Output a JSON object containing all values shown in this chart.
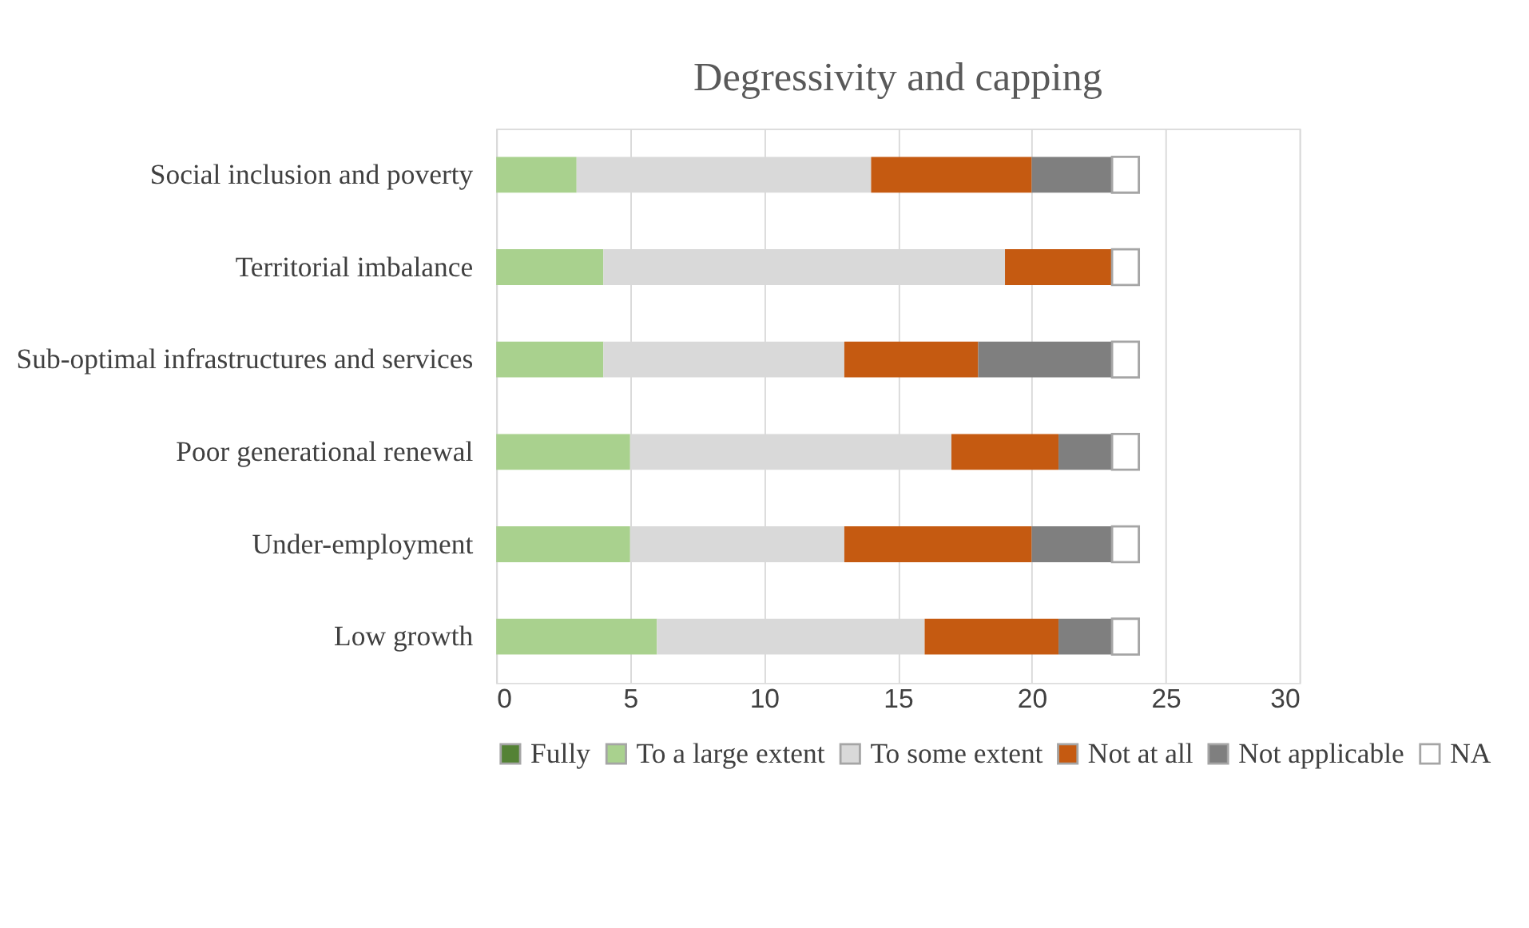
{
  "chart_data": {
    "type": "bar",
    "orientation": "horizontal",
    "stacked": true,
    "title": "Degressivity and capping",
    "categories": [
      "Social inclusion and poverty",
      "Territorial imbalance",
      "Sub-optimal infrastructures and services",
      "Poor generational renewal",
      "Under-employment",
      "Low growth"
    ],
    "series": [
      {
        "name": "Fully",
        "color": "#548235",
        "values": [
          0,
          0,
          0,
          0,
          0,
          0
        ]
      },
      {
        "name": "To a large extent",
        "color": "#a9d18e",
        "values": [
          3,
          4,
          4,
          5,
          5,
          6
        ]
      },
      {
        "name": "To some extent",
        "color": "#d9d9d9",
        "values": [
          11,
          15,
          9,
          12,
          8,
          10
        ]
      },
      {
        "name": "Not at all",
        "color": "#c55a11",
        "values": [
          6,
          4,
          5,
          4,
          7,
          5
        ]
      },
      {
        "name": "Not applicable",
        "color": "#7f7f7f",
        "values": [
          3,
          0,
          5,
          2,
          3,
          2
        ]
      },
      {
        "name": "NA",
        "color": "#ffffff",
        "values": [
          1,
          1,
          1,
          1,
          1,
          1
        ]
      }
    ],
    "xlim": [
      0,
      30
    ],
    "xticks": [
      0,
      5,
      10,
      15,
      20,
      25,
      30
    ],
    "grid": "x",
    "legend": "bottom"
  }
}
